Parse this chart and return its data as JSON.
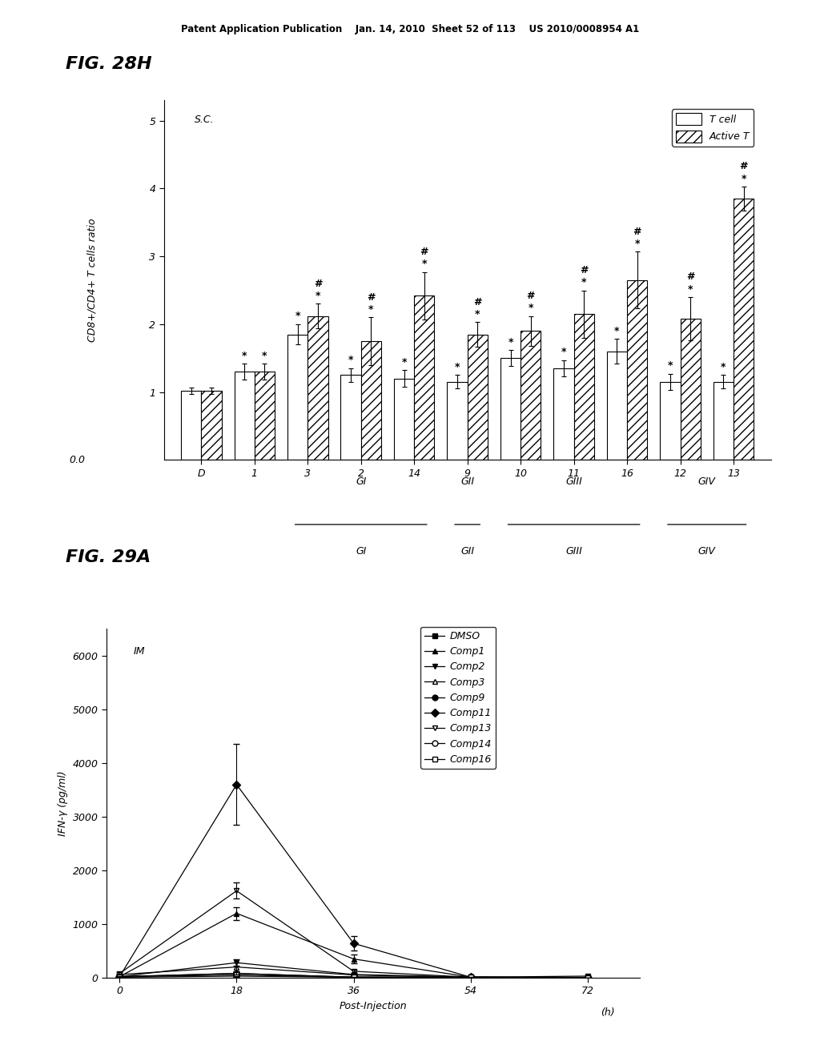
{
  "fig28h": {
    "title": "FIG. 28H",
    "ylabel": "CD8+/CD4+ T cells ratio",
    "sc_label": "S.C.",
    "legend_labels": [
      "T cell",
      "Active T"
    ],
    "categories": [
      "D",
      "1",
      "3",
      "2",
      "14",
      "9",
      "10",
      "11",
      "16",
      "12",
      "13"
    ],
    "tcell_values": [
      1.02,
      1.3,
      1.85,
      1.25,
      1.2,
      1.15,
      1.5,
      1.35,
      1.6,
      1.15,
      1.15
    ],
    "activet_values": [
      1.02,
      1.3,
      2.12,
      1.75,
      2.42,
      1.85,
      1.9,
      2.15,
      2.65,
      2.08,
      3.85
    ],
    "tcell_errors": [
      0.05,
      0.12,
      0.15,
      0.1,
      0.12,
      0.1,
      0.12,
      0.12,
      0.18,
      0.12,
      0.1
    ],
    "activet_errors": [
      0.05,
      0.12,
      0.18,
      0.35,
      0.35,
      0.18,
      0.22,
      0.35,
      0.42,
      0.32,
      0.18
    ],
    "star_tcell": [
      false,
      true,
      true,
      true,
      true,
      true,
      true,
      true,
      true,
      true,
      true
    ],
    "star_activet": [
      false,
      true,
      true,
      true,
      true,
      true,
      true,
      true,
      true,
      true,
      true
    ],
    "hash_activet": [
      false,
      false,
      true,
      true,
      true,
      true,
      true,
      true,
      true,
      true,
      true
    ],
    "group_info": [
      {
        "name": "GI",
        "start": 2,
        "end": 4
      },
      {
        "name": "GII",
        "start": 5,
        "end": 5
      },
      {
        "name": "GIII",
        "start": 6,
        "end": 8
      },
      {
        "name": "GIV",
        "start": 9,
        "end": 10
      }
    ]
  },
  "fig29a": {
    "title": "FIG. 29A",
    "ylabel": "IFN-γ (pg/ml)",
    "xlabel": "Post-Injection",
    "im_label": "IM",
    "x_values": [
      0,
      18,
      36,
      54,
      72
    ],
    "series_order": [
      "DMSO",
      "Comp1",
      "Comp2",
      "Comp3",
      "Comp9",
      "Comp11",
      "Comp13",
      "Comp14",
      "Comp16"
    ],
    "series_styles": {
      "DMSO": {
        "marker": "s",
        "mfc": "black",
        "mec": "black"
      },
      "Comp1": {
        "marker": "^",
        "mfc": "black",
        "mec": "black"
      },
      "Comp2": {
        "marker": "v",
        "mfc": "black",
        "mec": "black"
      },
      "Comp3": {
        "marker": "^",
        "mfc": "white",
        "mec": "black"
      },
      "Comp9": {
        "marker": "o",
        "mfc": "black",
        "mec": "black"
      },
      "Comp11": {
        "marker": "D",
        "mfc": "black",
        "mec": "black"
      },
      "Comp13": {
        "marker": "v",
        "mfc": "white",
        "mec": "black"
      },
      "Comp14": {
        "marker": "o",
        "mfc": "white",
        "mec": "black"
      },
      "Comp16": {
        "marker": "s",
        "mfc": "white",
        "mec": "black"
      }
    },
    "series": {
      "DMSO": [
        10,
        30,
        10,
        10,
        30
      ],
      "Comp1": [
        20,
        1200,
        350,
        10,
        0
      ],
      "Comp2": [
        20,
        280,
        60,
        10,
        0
      ],
      "Comp3": [
        60,
        200,
        50,
        10,
        0
      ],
      "Comp9": [
        20,
        50,
        10,
        0,
        0
      ],
      "Comp11": [
        20,
        3600,
        640,
        10,
        0
      ],
      "Comp13": [
        80,
        1620,
        120,
        10,
        0
      ],
      "Comp14": [
        20,
        80,
        10,
        10,
        0
      ],
      "Comp16": [
        20,
        80,
        10,
        10,
        0
      ]
    },
    "errors": {
      "DMSO": [
        5,
        20,
        5,
        5,
        5
      ],
      "Comp1": [
        10,
        120,
        80,
        5,
        0
      ],
      "Comp2": [
        10,
        60,
        20,
        5,
        0
      ],
      "Comp3": [
        15,
        80,
        15,
        5,
        0
      ],
      "Comp9": [
        5,
        10,
        5,
        0,
        0
      ],
      "Comp11": [
        10,
        750,
        130,
        5,
        0
      ],
      "Comp13": [
        20,
        150,
        30,
        5,
        0
      ],
      "Comp14": [
        5,
        20,
        5,
        5,
        0
      ],
      "Comp16": [
        5,
        20,
        5,
        5,
        0
      ]
    },
    "ylim": [
      0,
      6500
    ],
    "yticks": [
      0,
      1000,
      2000,
      3000,
      4000,
      5000,
      6000
    ]
  },
  "page_header": "Patent Application Publication    Jan. 14, 2010  Sheet 52 of 113    US 2010/0008954 A1",
  "background_color": "#ffffff"
}
